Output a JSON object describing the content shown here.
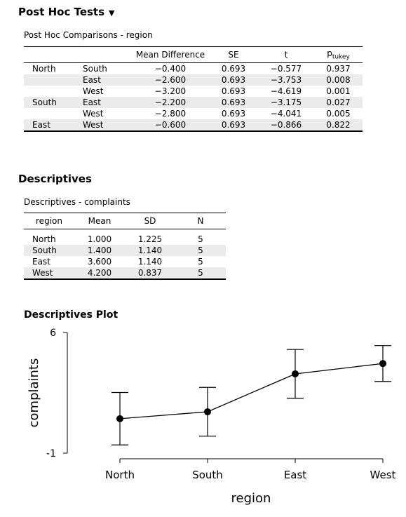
{
  "posthoc": {
    "heading": "Post Hoc Tests",
    "caption": "Post Hoc Comparisons - region",
    "columns": {
      "mean_diff": "Mean Difference",
      "se": "SE",
      "t": "t",
      "p": "p",
      "p_sub": "tukey"
    },
    "rows": [
      {
        "g1": "North",
        "g2": "South",
        "md": "−0.400",
        "se": "0.693",
        "t": "−0.577",
        "p": "0.937"
      },
      {
        "g1": "",
        "g2": "East",
        "md": "−2.600",
        "se": "0.693",
        "t": "−3.753",
        "p": "0.008"
      },
      {
        "g1": "",
        "g2": "West",
        "md": "−3.200",
        "se": "0.693",
        "t": "−4.619",
        "p": "0.001"
      },
      {
        "g1": "South",
        "g2": "East",
        "md": "−2.200",
        "se": "0.693",
        "t": "−3.175",
        "p": "0.027"
      },
      {
        "g1": "",
        "g2": "West",
        "md": "−2.800",
        "se": "0.693",
        "t": "−4.041",
        "p": "0.005"
      },
      {
        "g1": "East",
        "g2": "West",
        "md": "−0.600",
        "se": "0.693",
        "t": "−0.866",
        "p": "0.822"
      }
    ]
  },
  "descriptives": {
    "heading": "Descriptives",
    "caption": "Descriptives - complaints",
    "columns": {
      "region": "region",
      "mean": "Mean",
      "sd": "SD",
      "n": "N"
    },
    "rows": [
      {
        "region": "North",
        "mean": "1.000",
        "sd": "1.225",
        "n": "5"
      },
      {
        "region": "South",
        "mean": "1.400",
        "sd": "1.140",
        "n": "5"
      },
      {
        "region": "East",
        "mean": "3.600",
        "sd": "1.140",
        "n": "5"
      },
      {
        "region": "West",
        "mean": "4.200",
        "sd": "0.837",
        "n": "5"
      }
    ]
  },
  "plot_section": {
    "heading": "Descriptives Plot"
  },
  "chart_data": {
    "type": "line",
    "categories": [
      "North",
      "South",
      "East",
      "West"
    ],
    "values": [
      1.0,
      1.4,
      3.6,
      4.2
    ],
    "error_low": [
      -0.521,
      -0.016,
      2.184,
      3.161
    ],
    "error_high": [
      2.521,
      2.816,
      5.016,
      5.239
    ],
    "xlabel": "region",
    "ylabel": "complaints",
    "ylim": [
      -1,
      6
    ],
    "yticks": [
      "-1",
      "6"
    ],
    "grid": false
  }
}
